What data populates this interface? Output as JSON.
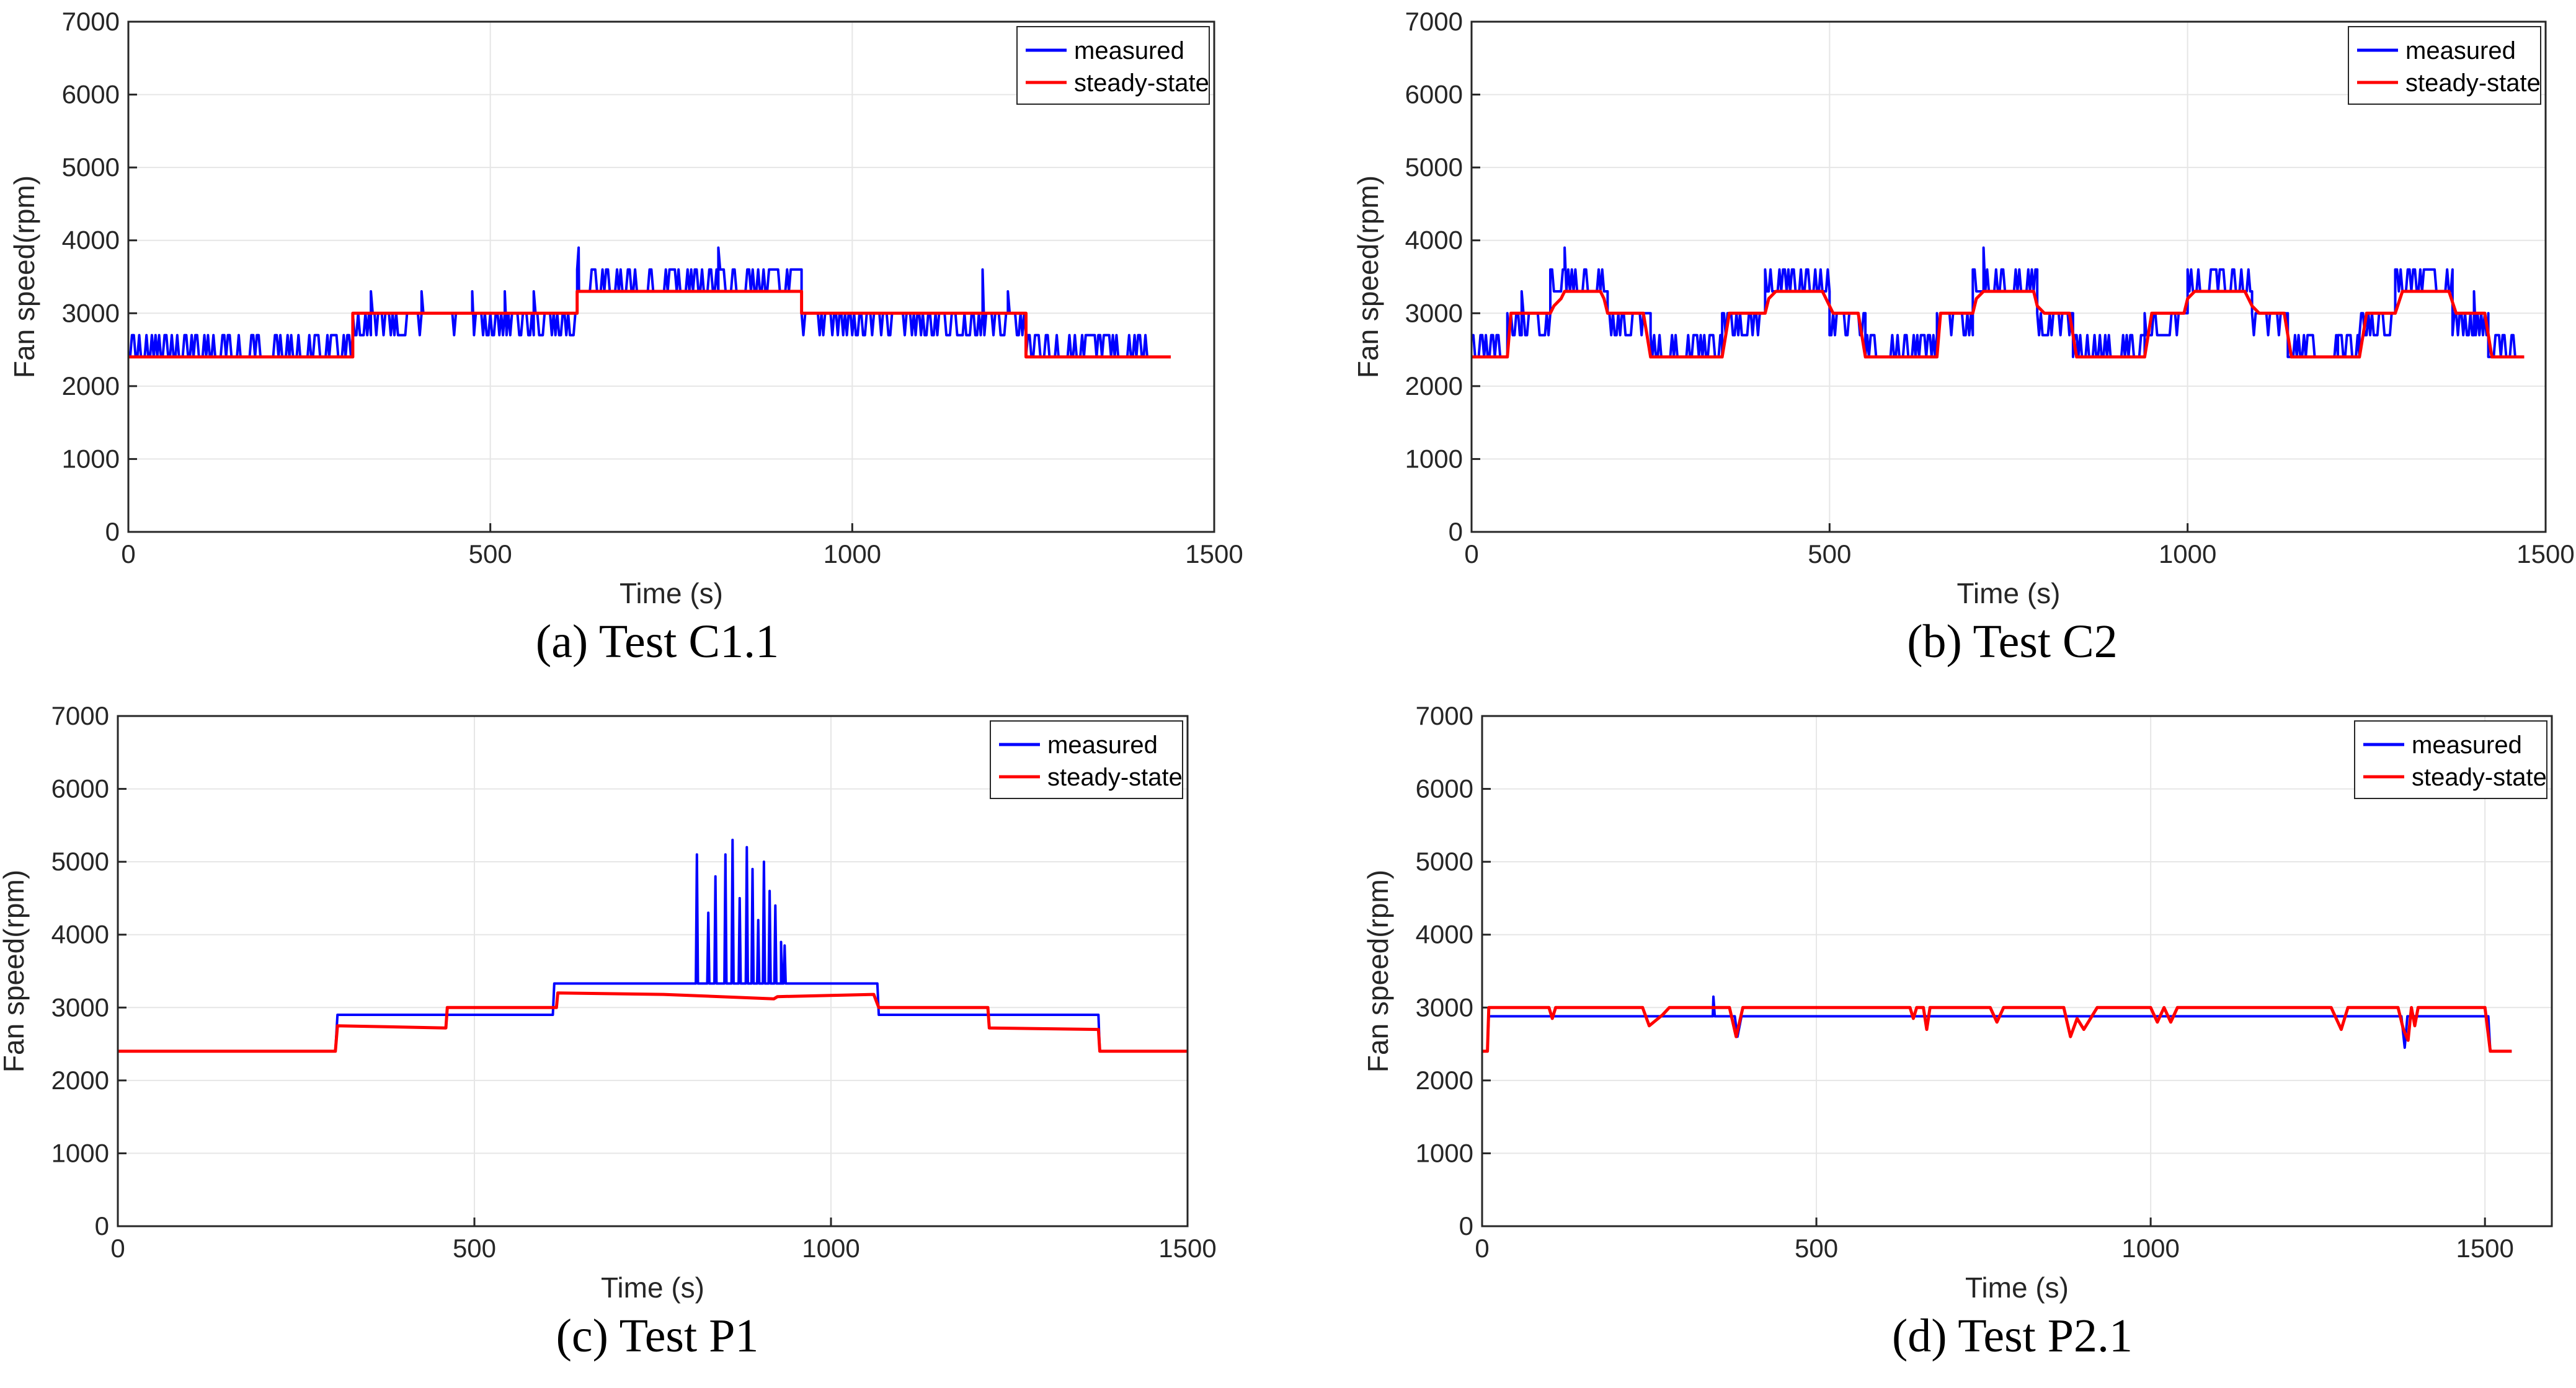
{
  "colors": {
    "measured": "#0000ff",
    "steady": "#ff0000",
    "grid": "#e6e6e6",
    "axis": "#262626"
  },
  "chart_data": [
    {
      "type": "line",
      "caption": "(a)  Test C1.1",
      "xlabel": "Time (s)",
      "ylabel": "Fan speed(rpm)",
      "xlim": [
        0,
        1500
      ],
      "ylim": [
        0,
        7000
      ],
      "xticks": [
        "0",
        "500",
        "1000",
        "1500"
      ],
      "yticks": [
        "0",
        "1000",
        "2000",
        "3000",
        "4000",
        "5000",
        "6000",
        "7000"
      ],
      "grid": true,
      "legend": "top-right",
      "series": [
        {
          "name": "measured",
          "style": "noisy",
          "segments": [
            [
              0,
              310,
              2400,
              2700
            ],
            [
              310,
              620,
              3000,
              2700
            ],
            [
              620,
              930,
              3300,
              3600
            ],
            [
              930,
              1240,
              3000,
              2700
            ],
            [
              1240,
              1440,
              2400,
              2700
            ]
          ],
          "spikes": [
            [
              335,
              3300
            ],
            [
              405,
              3300
            ],
            [
              475,
              3300
            ],
            [
              520,
              3300
            ],
            [
              560,
              3300
            ],
            [
              622,
              3900
            ],
            [
              755,
              3600
            ],
            [
              815,
              3900
            ],
            [
              1180,
              3600
            ],
            [
              1215,
              3300
            ]
          ]
        },
        {
          "name": "steady-state",
          "points": [
            [
              0,
              2400
            ],
            [
              310,
              2400
            ],
            [
              310,
              3000
            ],
            [
              620,
              3000
            ],
            [
              620,
              3300
            ],
            [
              930,
              3300
            ],
            [
              930,
              3000
            ],
            [
              1240,
              3000
            ],
            [
              1240,
              2400
            ],
            [
              1440,
              2400
            ]
          ]
        }
      ]
    },
    {
      "type": "line",
      "caption": "(b)  Test C2",
      "xlabel": "Time (s)",
      "ylabel": "Fan speed(rpm)",
      "xlim": [
        0,
        1500
      ],
      "ylim": [
        0,
        7000
      ],
      "xticks": [
        "0",
        "500",
        "1000",
        "1500"
      ],
      "yticks": [
        "0",
        "1000",
        "2000",
        "3000",
        "4000",
        "5000",
        "6000",
        "7000"
      ],
      "grid": true,
      "legend": "top-right",
      "series": [
        {
          "name": "measured",
          "style": "noisy",
          "segments": [
            [
              0,
              50,
              2400,
              2700
            ],
            [
              50,
              110,
              3000,
              2700
            ],
            [
              110,
              190,
              3300,
              3600
            ],
            [
              190,
              250,
              3000,
              2700
            ],
            [
              250,
              350,
              2400,
              2700
            ],
            [
              350,
              410,
              3000,
              2700
            ],
            [
              410,
              500,
              3300,
              3600
            ],
            [
              500,
              550,
              3000,
              2700
            ],
            [
              550,
              650,
              2400,
              2700
            ],
            [
              650,
              700,
              3000,
              2700
            ],
            [
              700,
              790,
              3300,
              3600
            ],
            [
              790,
              840,
              3000,
              2700
            ],
            [
              840,
              940,
              2400,
              2700
            ],
            [
              940,
              1000,
              3000,
              2700
            ],
            [
              1000,
              1090,
              3300,
              3600
            ],
            [
              1090,
              1140,
              3000,
              2700
            ],
            [
              1140,
              1240,
              2400,
              2700
            ],
            [
              1240,
              1290,
              3000,
              2700
            ],
            [
              1290,
              1370,
              3300,
              3600
            ],
            [
              1370,
              1420,
              3000,
              2700
            ],
            [
              1420,
              1470,
              2400,
              2700
            ]
          ],
          "spikes": [
            [
              70,
              3300
            ],
            [
              130,
              3900
            ],
            [
              715,
              3900
            ],
            [
              1210,
              2700
            ],
            [
              1400,
              3300
            ]
          ]
        },
        {
          "name": "steady-state",
          "points": [
            [
              0,
              2400
            ],
            [
              50,
              2400
            ],
            [
              55,
              3000
            ],
            [
              110,
              3000
            ],
            [
              115,
              3100
            ],
            [
              125,
              3200
            ],
            [
              130,
              3300
            ],
            [
              180,
              3300
            ],
            [
              185,
              3200
            ],
            [
              190,
              3000
            ],
            [
              240,
              3000
            ],
            [
              250,
              2400
            ],
            [
              350,
              2400
            ],
            [
              360,
              3000
            ],
            [
              410,
              3000
            ],
            [
              415,
              3200
            ],
            [
              425,
              3300
            ],
            [
              490,
              3300
            ],
            [
              495,
              3200
            ],
            [
              505,
              3000
            ],
            [
              540,
              3000
            ],
            [
              550,
              2400
            ],
            [
              650,
              2400
            ],
            [
              655,
              3000
            ],
            [
              700,
              3000
            ],
            [
              705,
              3200
            ],
            [
              715,
              3300
            ],
            [
              785,
              3300
            ],
            [
              790,
              3100
            ],
            [
              800,
              3000
            ],
            [
              835,
              3000
            ],
            [
              845,
              2400
            ],
            [
              940,
              2400
            ],
            [
              950,
              3000
            ],
            [
              995,
              3000
            ],
            [
              1000,
              3200
            ],
            [
              1010,
              3300
            ],
            [
              1080,
              3300
            ],
            [
              1090,
              3100
            ],
            [
              1100,
              3000
            ],
            [
              1135,
              3000
            ],
            [
              1145,
              2400
            ],
            [
              1240,
              2400
            ],
            [
              1245,
              2700
            ],
            [
              1250,
              3000
            ],
            [
              1290,
              3000
            ],
            [
              1300,
              3300
            ],
            [
              1365,
              3300
            ],
            [
              1375,
              3000
            ],
            [
              1415,
              3000
            ],
            [
              1425,
              2400
            ],
            [
              1470,
              2400
            ]
          ]
        }
      ]
    },
    {
      "type": "line",
      "caption": "(c)   Test P1",
      "xlabel": "Time (s)",
      "ylabel": "Fan speed(rpm)",
      "xlim": [
        0,
        1500
      ],
      "ylim": [
        0,
        7000
      ],
      "xticks": [
        "0",
        "500",
        "1000",
        "1500"
      ],
      "yticks": [
        "0",
        "1000",
        "2000",
        "3000",
        "4000",
        "5000",
        "6000",
        "7000"
      ],
      "grid": true,
      "legend": "top-right",
      "series": [
        {
          "name": "measured",
          "style": "peaks",
          "points": [
            [
              0,
              2400
            ],
            [
              305,
              2400
            ],
            [
              308,
              2900
            ],
            [
              610,
              2900
            ],
            [
              612,
              3330
            ],
            [
              800,
              3330
            ],
            [
              930,
              3330
            ],
            [
              1065,
              3330
            ],
            [
              1067,
              2900
            ],
            [
              1375,
              2900
            ],
            [
              1377,
              2400
            ],
            [
              1500,
              2400
            ]
          ],
          "peaks": [
            [
              812,
              5100
            ],
            [
              828,
              4300
            ],
            [
              838,
              4800
            ],
            [
              852,
              5100
            ],
            [
              862,
              5300
            ],
            [
              872,
              4500
            ],
            [
              882,
              5200
            ],
            [
              890,
              4900
            ],
            [
              898,
              4200
            ],
            [
              906,
              5000
            ],
            [
              914,
              4600
            ],
            [
              922,
              4400
            ],
            [
              930,
              3900
            ],
            [
              935,
              3850
            ]
          ],
          "peak_range": [
            805,
            940
          ]
        },
        {
          "name": "steady-state",
          "points": [
            [
              0,
              2400
            ],
            [
              305,
              2400
            ],
            [
              308,
              2750
            ],
            [
              460,
              2720
            ],
            [
              462,
              3000
            ],
            [
              615,
              3000
            ],
            [
              617,
              3200
            ],
            [
              765,
              3180
            ],
            [
              920,
              3120
            ],
            [
              925,
              3150
            ],
            [
              1060,
              3180
            ],
            [
              1067,
              3000
            ],
            [
              1220,
              3000
            ],
            [
              1222,
              2720
            ],
            [
              1375,
              2700
            ],
            [
              1377,
              2400
            ],
            [
              1500,
              2400
            ]
          ]
        }
      ]
    },
    {
      "type": "line",
      "caption": "(d)  Test P2.1",
      "xlabel": "Time (s)",
      "ylabel": "Fan speed(rpm)",
      "xlim": [
        0,
        1600
      ],
      "ylim": [
        0,
        7000
      ],
      "xticks": [
        "0",
        "500",
        "1000",
        "1500"
      ],
      "yticks": [
        "0",
        "1000",
        "2000",
        "3000",
        "4000",
        "5000",
        "6000",
        "7000"
      ],
      "grid": true,
      "legend": "top-right",
      "series": [
        {
          "name": "measured",
          "points": [
            [
              0,
              2400
            ],
            [
              8,
              2400
            ],
            [
              10,
              2880
            ],
            [
              345,
              2880
            ],
            [
              346,
              3150
            ],
            [
              348,
              2880
            ],
            [
              378,
              2880
            ],
            [
              382,
              2600
            ],
            [
              388,
              2880
            ],
            [
              1375,
              2880
            ],
            [
              1380,
              2450
            ],
            [
              1384,
              2880
            ],
            [
              1505,
              2880
            ],
            [
              1508,
              2400
            ],
            [
              1540,
              2400
            ]
          ]
        },
        {
          "name": "steady-state",
          "points": [
            [
              0,
              2400
            ],
            [
              8,
              2400
            ],
            [
              10,
              3000
            ],
            [
              100,
              3000
            ],
            [
              105,
              2850
            ],
            [
              110,
              3000
            ],
            [
              240,
              3000
            ],
            [
              250,
              2750
            ],
            [
              270,
              2900
            ],
            [
              280,
              3000
            ],
            [
              370,
              3000
            ],
            [
              375,
              2800
            ],
            [
              380,
              2600
            ],
            [
              385,
              2800
            ],
            [
              390,
              3000
            ],
            [
              640,
              3000
            ],
            [
              645,
              2850
            ],
            [
              650,
              3000
            ],
            [
              660,
              3000
            ],
            [
              665,
              2700
            ],
            [
              670,
              3000
            ],
            [
              760,
              3000
            ],
            [
              770,
              2800
            ],
            [
              780,
              3000
            ],
            [
              870,
              3000
            ],
            [
              880,
              2600
            ],
            [
              890,
              2850
            ],
            [
              900,
              2700
            ],
            [
              910,
              2850
            ],
            [
              920,
              3000
            ],
            [
              1000,
              3000
            ],
            [
              1010,
              2800
            ],
            [
              1020,
              3000
            ],
            [
              1030,
              2800
            ],
            [
              1040,
              3000
            ],
            [
              1270,
              3000
            ],
            [
              1285,
              2700
            ],
            [
              1295,
              3000
            ],
            [
              1370,
              3000
            ],
            [
              1378,
              2700
            ],
            [
              1385,
              2550
            ],
            [
              1390,
              3000
            ],
            [
              1395,
              2750
            ],
            [
              1400,
              3000
            ],
            [
              1500,
              3000
            ],
            [
              1508,
              2400
            ],
            [
              1540,
              2400
            ]
          ]
        }
      ]
    }
  ]
}
